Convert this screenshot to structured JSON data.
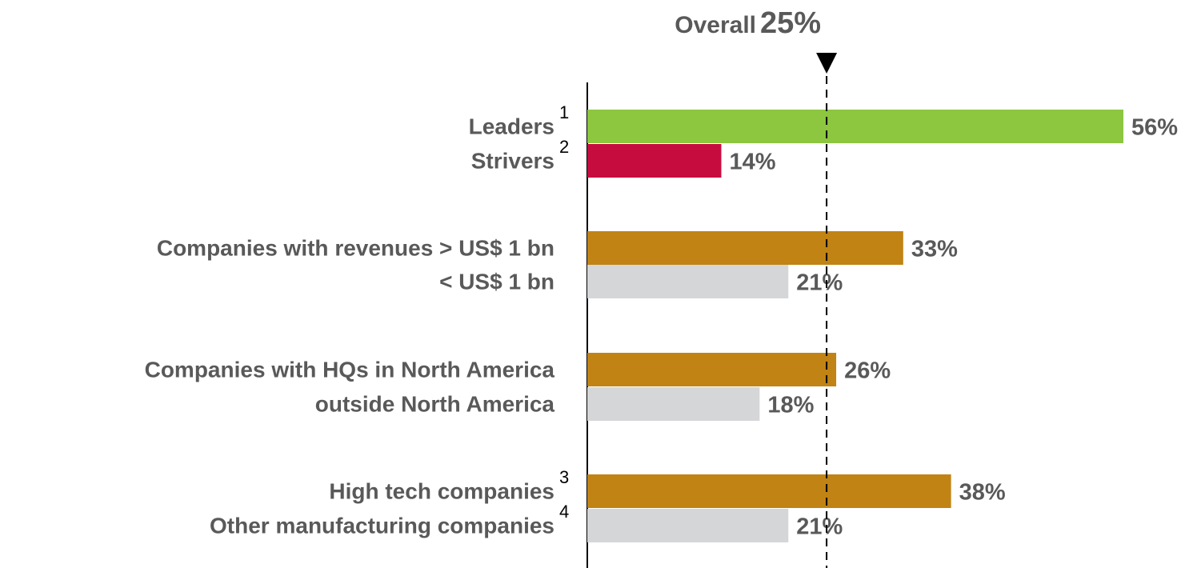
{
  "chart_data": {
    "type": "hbar",
    "categories": [
      "Leaders",
      "Strivers",
      "Companies with revenues > US$ 1 bn",
      "< US$ 1 bn",
      "Companies with HQs in North America",
      "outside North America",
      "High tech companies",
      "Other manufacturing companies"
    ],
    "footnotes": [
      "1",
      "2",
      null,
      null,
      null,
      null,
      "3",
      "4"
    ],
    "values": [
      56,
      14,
      33,
      21,
      26,
      18,
      38,
      21
    ],
    "value_labels": [
      "56%",
      "14%",
      "33%",
      "21%",
      "26%",
      "18%",
      "38%",
      "21%"
    ],
    "colors": [
      "#8dc63f",
      "#c60c3f",
      "#c08314",
      "#d5d6d8",
      "#c08314",
      "#d5d6d8",
      "#c08314",
      "#d5d6d8"
    ],
    "xlim": [
      0,
      56
    ],
    "reference": {
      "label": "Overall",
      "value": 25,
      "value_label": "25%"
    }
  }
}
